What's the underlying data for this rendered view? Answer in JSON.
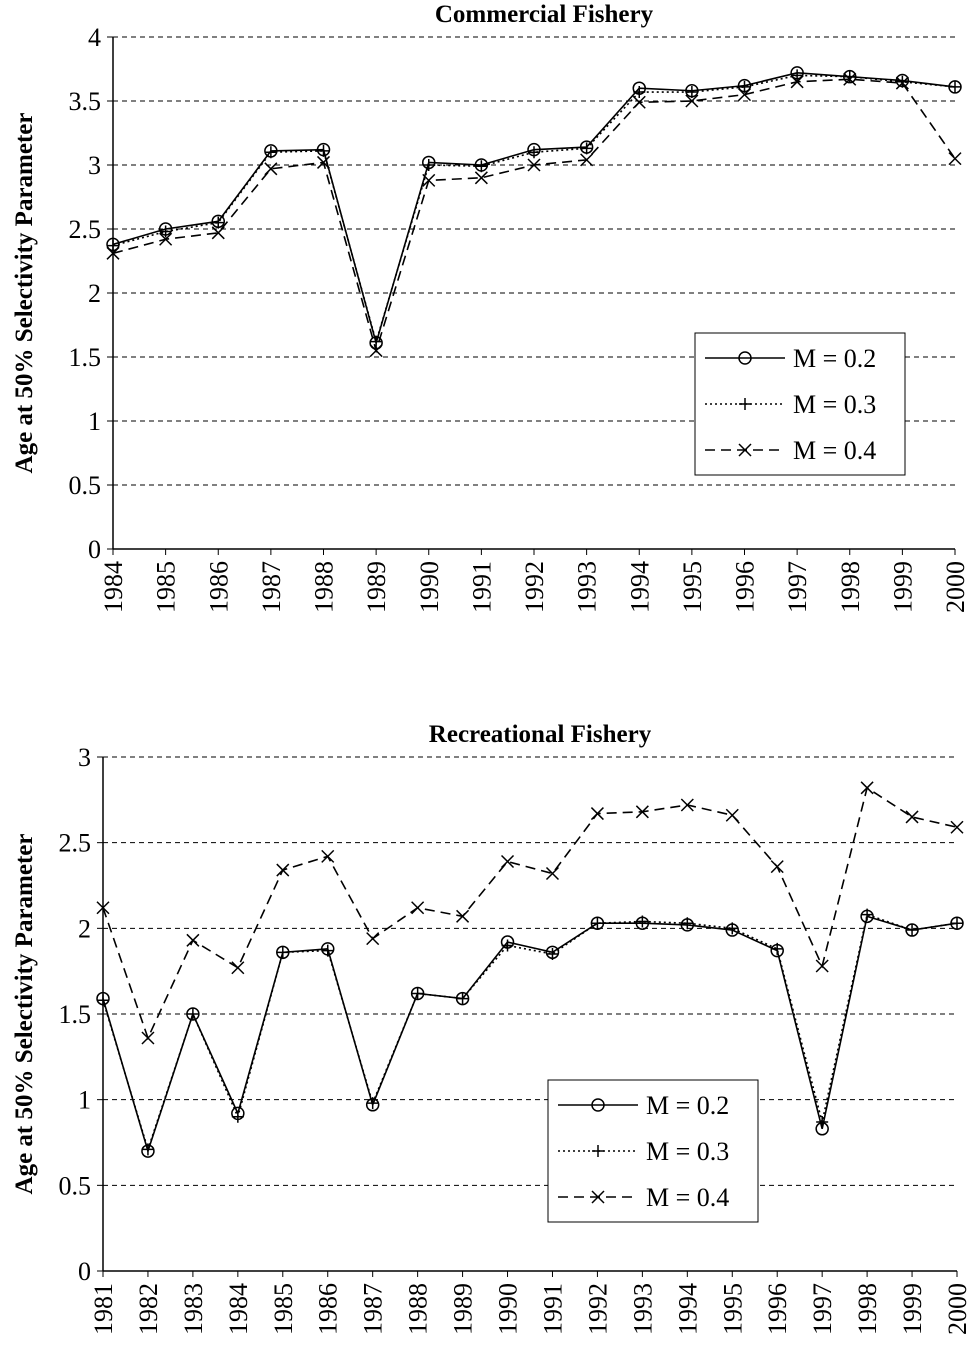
{
  "chart_data": [
    {
      "type": "line",
      "title": "Commercial Fishery",
      "y_label": "Age at 50% Selectivity Parameter",
      "categories": [
        "1984",
        "1985",
        "1986",
        "1987",
        "1988",
        "1989",
        "1990",
        "1991",
        "1992",
        "1993",
        "1994",
        "1995",
        "1996",
        "1997",
        "1998",
        "1999",
        "2000"
      ],
      "series": [
        {
          "name": "M = 0.2",
          "color": "#000000",
          "line_style": "solid",
          "marker": "circle",
          "values": [
            2.38,
            2.5,
            2.56,
            3.11,
            3.12,
            1.61,
            3.02,
            3.0,
            3.12,
            3.14,
            3.6,
            3.58,
            3.62,
            3.72,
            3.69,
            3.66,
            3.61
          ]
        },
        {
          "name": "M = 0.3",
          "color": "#000000",
          "line_style": "dotted",
          "marker": "plus",
          "values": [
            2.37,
            2.48,
            2.55,
            3.1,
            3.11,
            1.62,
            3.0,
            2.99,
            3.1,
            3.13,
            3.57,
            3.57,
            3.61,
            3.7,
            3.69,
            3.65,
            3.61
          ]
        },
        {
          "name": "M = 0.4",
          "color": "#000000",
          "line_style": "dashed",
          "marker": "x",
          "values": [
            2.31,
            2.42,
            2.47,
            2.97,
            3.02,
            1.55,
            2.88,
            2.9,
            3.0,
            3.04,
            3.49,
            3.5,
            3.55,
            3.65,
            3.67,
            3.64,
            3.05
          ]
        }
      ],
      "ylim": [
        0,
        4
      ],
      "yticks": [
        0,
        0.5,
        1,
        1.5,
        2,
        2.5,
        3,
        3.5,
        4
      ],
      "grid": true,
      "legend": "lower right"
    },
    {
      "type": "line",
      "title": "Recreational Fishery",
      "y_label": "Age at 50% Selectivity Parameter",
      "categories": [
        "1981",
        "1982",
        "1983",
        "1984",
        "1985",
        "1986",
        "1987",
        "1988",
        "1989",
        "1990",
        "1991",
        "1992",
        "1993",
        "1994",
        "1995",
        "1996",
        "1997",
        "1998",
        "1999",
        "2000"
      ],
      "series": [
        {
          "name": "M = 0.2",
          "color": "#000000",
          "line_style": "solid",
          "marker": "circle",
          "values": [
            1.59,
            0.7,
            1.5,
            0.92,
            1.86,
            1.88,
            0.97,
            1.62,
            1.59,
            1.92,
            1.86,
            2.03,
            2.03,
            2.02,
            1.99,
            1.87,
            0.83,
            2.07,
            1.99,
            2.03
          ]
        },
        {
          "name": "M = 0.3",
          "color": "#000000",
          "line_style": "dotted",
          "marker": "plus",
          "values": [
            1.58,
            0.71,
            1.5,
            0.9,
            1.86,
            1.87,
            0.98,
            1.62,
            1.59,
            1.9,
            1.85,
            2.03,
            2.04,
            2.03,
            2.0,
            1.88,
            0.87,
            2.08,
            1.99,
            2.03
          ]
        },
        {
          "name": "M = 0.4",
          "color": "#000000",
          "line_style": "dashed",
          "marker": "x",
          "values": [
            2.12,
            1.36,
            1.93,
            1.77,
            2.34,
            2.42,
            1.94,
            2.12,
            2.07,
            2.39,
            2.32,
            2.67,
            2.68,
            2.72,
            2.66,
            2.36,
            1.78,
            2.82,
            2.65,
            2.59
          ]
        }
      ],
      "ylim": [
        0,
        3
      ],
      "yticks": [
        0,
        0.5,
        1,
        1.5,
        2,
        2.5,
        3
      ],
      "grid": true,
      "legend": "lower right"
    }
  ]
}
